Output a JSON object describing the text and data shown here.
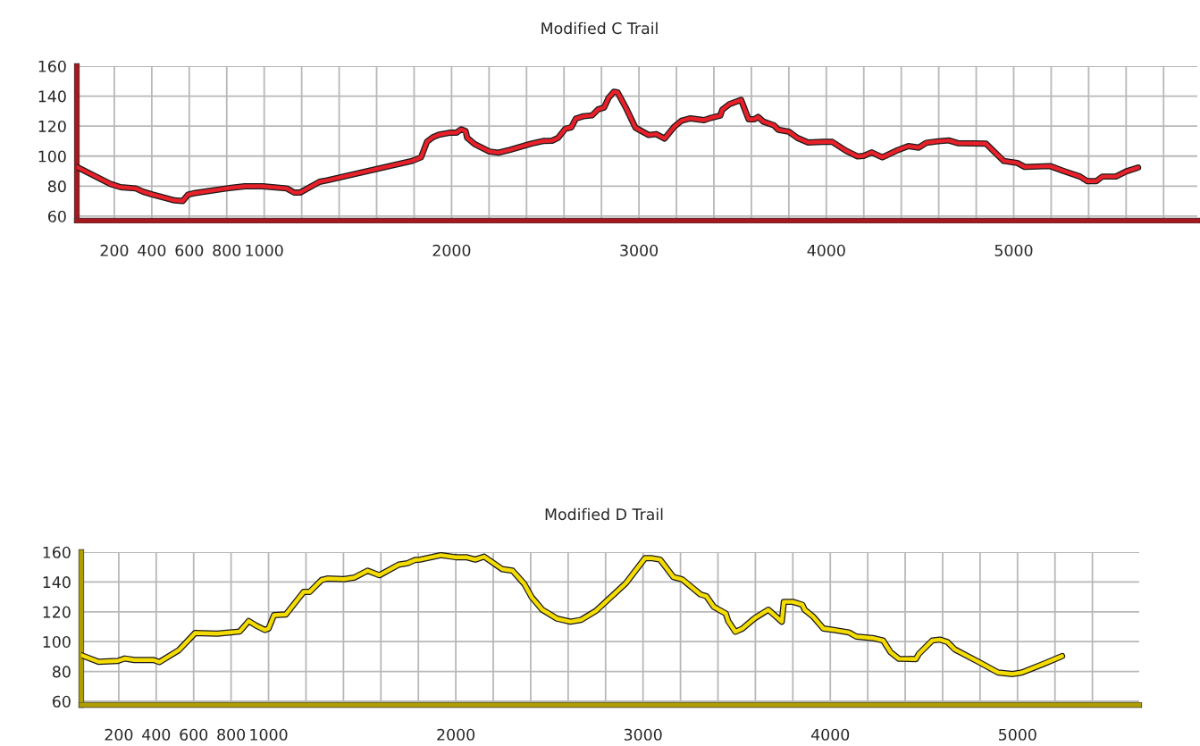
{
  "chart_data": [
    {
      "type": "line",
      "title": "Modified C Trail",
      "color": "#e8202a",
      "grid": true,
      "marker": "none",
      "line_style": "solid",
      "x": [
        0,
        179,
        234,
        314,
        354,
        402,
        522,
        565,
        593,
        625,
        800,
        896,
        992,
        1120,
        1160,
        1191,
        1295,
        1335,
        1789,
        1837,
        1869,
        1901,
        1933,
        1995,
        2027,
        2051,
        2075,
        2083,
        2122,
        2202,
        2250,
        2313,
        2424,
        2488,
        2536,
        2568,
        2607,
        2639,
        2663,
        2703,
        2750,
        2782,
        2814,
        2838,
        2866,
        2886,
        2933,
        2981,
        3052,
        3092,
        3137,
        3188,
        3227,
        3275,
        3347,
        3386,
        3434,
        3445,
        3482,
        3545,
        3585,
        3617,
        3636,
        3664,
        3720,
        3744,
        3800,
        3847,
        3903,
        3982,
        4032,
        4104,
        4167,
        4199,
        4242,
        4299,
        4382,
        4438,
        4494,
        4533,
        4597,
        4653,
        4701,
        4852,
        4947,
        5019,
        5059,
        5194,
        5274,
        5354,
        5393,
        5441,
        5473,
        5545,
        5600,
        5664
      ],
      "values": [
        92.8,
        81.5,
        79.3,
        78.5,
        76.3,
        74.5,
        70.5,
        70.1,
        74.3,
        75.3,
        78.5,
        79.9,
        79.9,
        78.5,
        75.7,
        75.7,
        82.9,
        83.9,
        96.8,
        99.2,
        109.7,
        112.7,
        114.3,
        115.7,
        115.7,
        117.9,
        116.7,
        112.3,
        108.1,
        103.1,
        102.3,
        104.3,
        108.3,
        110.1,
        110.3,
        112.1,
        118.3,
        119.2,
        125,
        126.6,
        127.2,
        131.2,
        132.4,
        138.9,
        142.9,
        142.5,
        131.6,
        119,
        114.1,
        114.7,
        111.7,
        119.6,
        123.6,
        125.2,
        124,
        125.6,
        127,
        131,
        134.6,
        137.5,
        124.6,
        124.6,
        126.2,
        123,
        120.6,
        117.6,
        116.3,
        112.1,
        109.1,
        109.5,
        109.5,
        103.7,
        99.8,
        100.2,
        102.5,
        99.2,
        104.1,
        106.7,
        105.7,
        108.9,
        109.9,
        110.5,
        108.7,
        108.3,
        96.8,
        95.5,
        92.8,
        93.4,
        89.8,
        86.4,
        83.3,
        83.3,
        86.4,
        86.4,
        89.8,
        92.4
      ],
      "xlim": [
        0,
        5980
      ],
      "ylim": [
        57,
        160
      ],
      "yticks": [
        60,
        80,
        100,
        120,
        140,
        160
      ],
      "xticks": [
        {
          "value": 200,
          "label": "200"
        },
        {
          "value": 400,
          "label": "400"
        },
        {
          "value": 600,
          "label": "600"
        },
        {
          "value": 800,
          "label": "800"
        },
        {
          "value": 1000,
          "label": "1000"
        },
        {
          "value": 1200,
          "label": null
        },
        {
          "value": 1400,
          "label": null
        },
        {
          "value": 1600,
          "label": null
        },
        {
          "value": 1800,
          "label": null
        },
        {
          "value": 2000,
          "label": "2000"
        },
        {
          "value": 2200,
          "label": null
        },
        {
          "value": 2400,
          "label": null
        },
        {
          "value": 2600,
          "label": null
        },
        {
          "value": 2800,
          "label": null
        },
        {
          "value": 3000,
          "label": "3000"
        },
        {
          "value": 3200,
          "label": null
        },
        {
          "value": 3400,
          "label": null
        },
        {
          "value": 3600,
          "label": null
        },
        {
          "value": 3800,
          "label": null
        },
        {
          "value": 4000,
          "label": "4000"
        },
        {
          "value": 4200,
          "label": null
        },
        {
          "value": 4400,
          "label": null
        },
        {
          "value": 4600,
          "label": null
        },
        {
          "value": 4800,
          "label": null
        },
        {
          "value": 5000,
          "label": "5000"
        },
        {
          "value": 5200,
          "label": null
        },
        {
          "value": 5400,
          "label": null
        },
        {
          "value": 5600,
          "label": null
        },
        {
          "value": 5800,
          "label": null
        }
      ]
    },
    {
      "type": "line",
      "title": "Modified D Trail",
      "color": "#f5dc00",
      "grid": true,
      "marker": "none",
      "line_style": "solid",
      "x": [
        0,
        92,
        195,
        232,
        283,
        386,
        417,
        521,
        608,
        727,
        846,
        894,
        933,
        981,
        1000,
        1029,
        1092,
        1187,
        1219,
        1283,
        1314,
        1402,
        1457,
        1529,
        1592,
        1695,
        1743,
        1783,
        1809,
        1920,
        2000,
        2056,
        2104,
        2151,
        2248,
        2303,
        2366,
        2406,
        2462,
        2541,
        2613,
        2669,
        2748,
        2908,
        3011,
        3043,
        3091,
        3162,
        3210,
        3306,
        3338,
        3378,
        3442,
        3455,
        3493,
        3529,
        3593,
        3669,
        3720,
        3741,
        3752,
        3800,
        3851,
        3863,
        3908,
        3963,
        4019,
        4099,
        4139,
        4226,
        4282,
        4322,
        4367,
        4457,
        4473,
        4545,
        4585,
        4625,
        4665,
        4800,
        4896,
        4975,
        5023,
        5135,
        5238
      ],
      "values": [
        90.9,
        86.5,
        87.1,
        88.7,
        87.7,
        87.7,
        86.3,
        94.3,
        105.8,
        105.4,
        106.8,
        113.8,
        110.8,
        107.8,
        108.8,
        117.8,
        118.2,
        133.3,
        133.3,
        141.3,
        142.3,
        141.9,
        142.9,
        147.6,
        144.5,
        151.6,
        152.6,
        154.8,
        155,
        158,
        156.6,
        156.6,
        155,
        157,
        148.6,
        147.6,
        138.7,
        129.7,
        121.4,
        115.4,
        113.4,
        114.6,
        120.6,
        139.1,
        156,
        156,
        155,
        143.3,
        141.7,
        131.7,
        130.5,
        123.3,
        118.8,
        113.8,
        106.6,
        108.6,
        115.4,
        121.4,
        115.8,
        113.4,
        126.7,
        126.7,
        124.7,
        121.4,
        116.8,
        108.8,
        107.8,
        106.2,
        103.4,
        102.4,
        100.8,
        92.9,
        88.5,
        88.3,
        91.8,
        100.8,
        101.4,
        99.8,
        94.8,
        85.9,
        79.3,
        78.3,
        79.3,
        84.9,
        90.3
      ],
      "xlim": [
        0,
        5650
      ],
      "ylim": [
        57.6,
        160
      ],
      "yticks": [
        60,
        80,
        100,
        120,
        140,
        160
      ],
      "xticks": [
        {
          "value": 200,
          "label": "200"
        },
        {
          "value": 400,
          "label": "400"
        },
        {
          "value": 600,
          "label": "600"
        },
        {
          "value": 800,
          "label": "800"
        },
        {
          "value": 1000,
          "label": "1000"
        },
        {
          "value": 1200,
          "label": null
        },
        {
          "value": 1400,
          "label": null
        },
        {
          "value": 1600,
          "label": null
        },
        {
          "value": 1800,
          "label": null
        },
        {
          "value": 2000,
          "label": "2000"
        },
        {
          "value": 2200,
          "label": null
        },
        {
          "value": 2400,
          "label": null
        },
        {
          "value": 2600,
          "label": null
        },
        {
          "value": 2800,
          "label": null
        },
        {
          "value": 3000,
          "label": "3000"
        },
        {
          "value": 3200,
          "label": null
        },
        {
          "value": 3400,
          "label": null
        },
        {
          "value": 3600,
          "label": null
        },
        {
          "value": 3800,
          "label": null
        },
        {
          "value": 4000,
          "label": "4000"
        },
        {
          "value": 4200,
          "label": null
        },
        {
          "value": 4400,
          "label": null
        },
        {
          "value": 4600,
          "label": null
        },
        {
          "value": 4800,
          "label": null
        },
        {
          "value": 5000,
          "label": "5000"
        },
        {
          "value": 5200,
          "label": null
        },
        {
          "value": 5400,
          "label": null
        }
      ]
    }
  ]
}
